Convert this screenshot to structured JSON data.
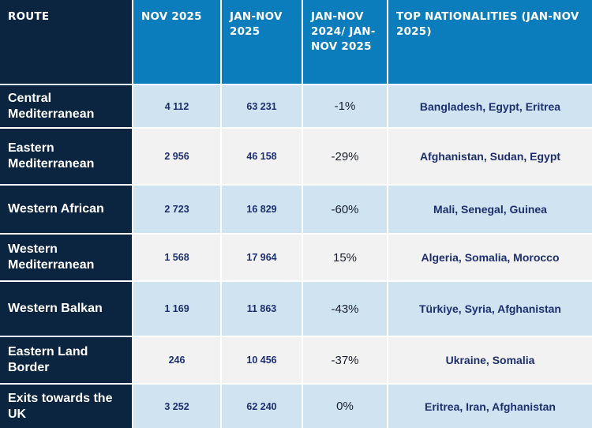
{
  "headers": {
    "route": "ROUTE",
    "nov": "NOV 2025",
    "jan_nov": "JAN-NOV 2025",
    "change": "JAN-NOV 2024/ JAN-NOV 2025",
    "nationalities": "TOP NATIONALITIES (JAN-NOV 2025)"
  },
  "rows": [
    {
      "route": "Central Mediterranean",
      "nov": "4 112",
      "jan_nov": "63 231",
      "change": "-1%",
      "nationalities": "Bangladesh, Egypt, Eritrea"
    },
    {
      "route": "Eastern Mediterranean",
      "nov": "2 956",
      "jan_nov": "46 158",
      "change": "-29%",
      "nationalities": "Afghanistan, Sudan, Egypt"
    },
    {
      "route": "Western African",
      "nov": "2 723",
      "jan_nov": "16 829",
      "change": "-60%",
      "nationalities": "Mali, Senegal, Guinea"
    },
    {
      "route": "Western Mediterranean",
      "nov": "1 568",
      "jan_nov": "17 964",
      "change": "15%",
      "nationalities": "Algeria, Somalia, Morocco"
    },
    {
      "route": "Western Balkan",
      "nov": "1 169",
      "jan_nov": "11 863",
      "change": "-43%",
      "nationalities": "Türkiye, Syria, Afghanistan"
    },
    {
      "route": "Eastern Land Border",
      "nov": "246",
      "jan_nov": "10 456",
      "change": "-37%",
      "nationalities": "Ukraine, Somalia"
    },
    {
      "route": "Exits towards the UK",
      "nov": "3 252",
      "jan_nov": "62 240",
      "change": "0%",
      "nationalities": "Eritrea, Iran, Afghanistan"
    }
  ],
  "colors": {
    "header_dark": "#0b2440",
    "header_blue": "#0b7dbd",
    "row_light_blue": "#cfe3f1",
    "row_light_grey": "#f2f2f2",
    "number_text": "#1d2f6f"
  }
}
